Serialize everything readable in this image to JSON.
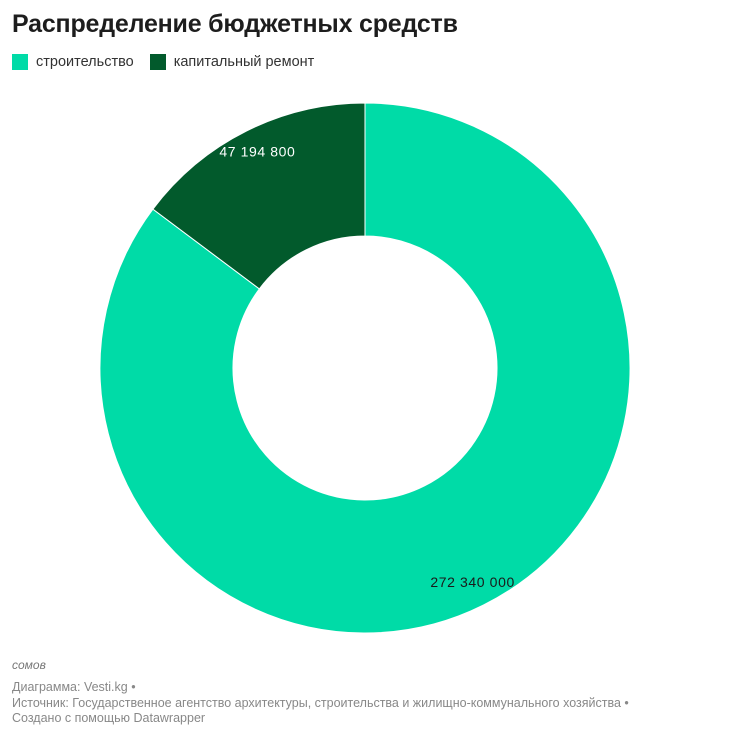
{
  "chart_data": {
    "type": "pie",
    "style": "donut",
    "title": "Распределение бюджетных средств",
    "categories": [
      "строительство",
      "капитальный ремонт"
    ],
    "values": [
      272340000,
      47194800
    ],
    "value_labels": [
      "272 340 000",
      "47 194 800"
    ],
    "colors": [
      "#00DBA7",
      "#025A2C"
    ],
    "label_colors": [
      "#1a1a1a",
      "#ffffff"
    ],
    "legend_position": "top-left",
    "units_note": "сомов"
  },
  "footer": {
    "line1": "Диаграмма: Vesti.kg •",
    "line2": "Источник: Государственное агентство архитектуры, строительства и жилищно-коммунального хозяйства •",
    "line3": "Создано с помощью Datawrapper"
  }
}
